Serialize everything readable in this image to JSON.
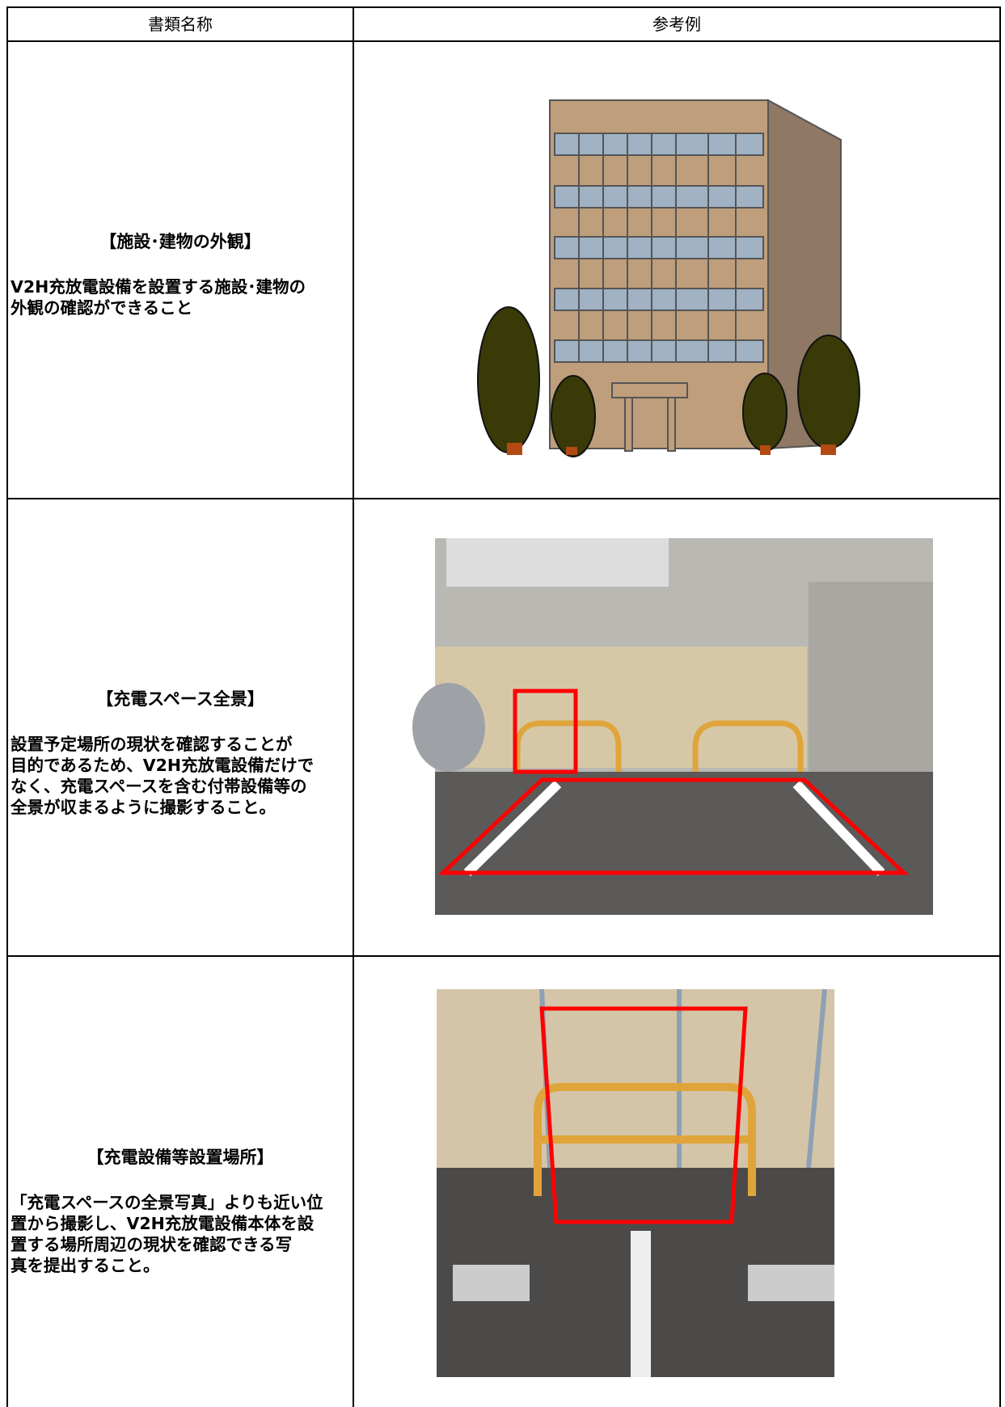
{
  "table": {
    "header": [
      "書類名称",
      "参考例"
    ],
    "rows": [
      {
        "title": "【施設･建物の外観】",
        "description": [
          "V2H充放電設備を設置する施設･建物の",
          "外観の確認ができること"
        ]
      },
      {
        "title": "【充電スペース全景】",
        "description": [
          "設置予定場所の現状を確認することが",
          "目的であるため、V2H充放電設備だけで",
          "なく、充電スペースを含む付帯設備等の",
          "全景が収まるように撮影すること。"
        ]
      },
      {
        "title": "【充電設備等設置場所】",
        "description": [
          "「充電スペースの全景写真」よりも近い位",
          "置から撮影し、V2H充放電設備本体を設",
          "置する場所周辺の現状を確認できる写",
          "真を提出すること。"
        ]
      }
    ]
  }
}
